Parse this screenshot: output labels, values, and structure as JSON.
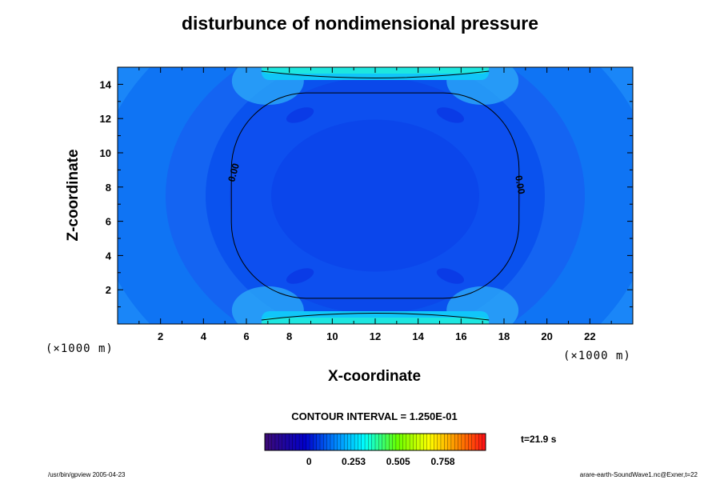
{
  "title": "disturbunce of nondimensional pressure",
  "x_unit": "(×1000 m)",
  "x_unit_right": "(×1000 m)",
  "contour_interval_label": "CONTOUR INTERVAL = 1.250E-01",
  "time_label": "t=21.9 s",
  "footer_left": "/usr/bin/gpview 2005-04-23",
  "footer_right": "arare-earth-SoundWave1.nc@Exner,t=22",
  "chart_data": {
    "type": "heatmap",
    "title": "disturbunce of nondimensional pressure",
    "xlabel": "X-coordinate",
    "ylabel": "Z-coordinate",
    "xlim": [
      0,
      24
    ],
    "ylim": [
      0,
      15
    ],
    "x_ticks": [
      2,
      4,
      6,
      8,
      10,
      12,
      14,
      16,
      18,
      20,
      22
    ],
    "x_tick_labels": [
      "2",
      "4",
      "6",
      "8",
      "10",
      "12",
      "14",
      "16",
      "18",
      "20",
      "22"
    ],
    "y_ticks": [
      2,
      4,
      6,
      8,
      10,
      12,
      14
    ],
    "y_tick_labels": [
      "2",
      "4",
      "6",
      "8",
      "10",
      "12",
      "14"
    ],
    "contour_interval": 0.125,
    "contour_labels": [
      "0.00",
      "0.00"
    ],
    "colorbar": {
      "ticks": [
        0,
        0.253,
        0.505,
        0.758
      ],
      "tick_labels": [
        "0",
        "0.253",
        "0.505",
        "0.758"
      ],
      "range": [
        -0.25,
        1.0
      ],
      "levels": 64
    },
    "field_description_values": {
      "background": 0.12,
      "inner_minimum": -0.12,
      "boundary_maximum": 0.38
    },
    "colors": {
      "min": "#3a0a78",
      "low": "#0000cc",
      "mid_low": "#0088ff",
      "mid": "#00ffff",
      "mid_high": "#66ff00",
      "high": "#ffff00",
      "max": "#ff0000"
    }
  }
}
